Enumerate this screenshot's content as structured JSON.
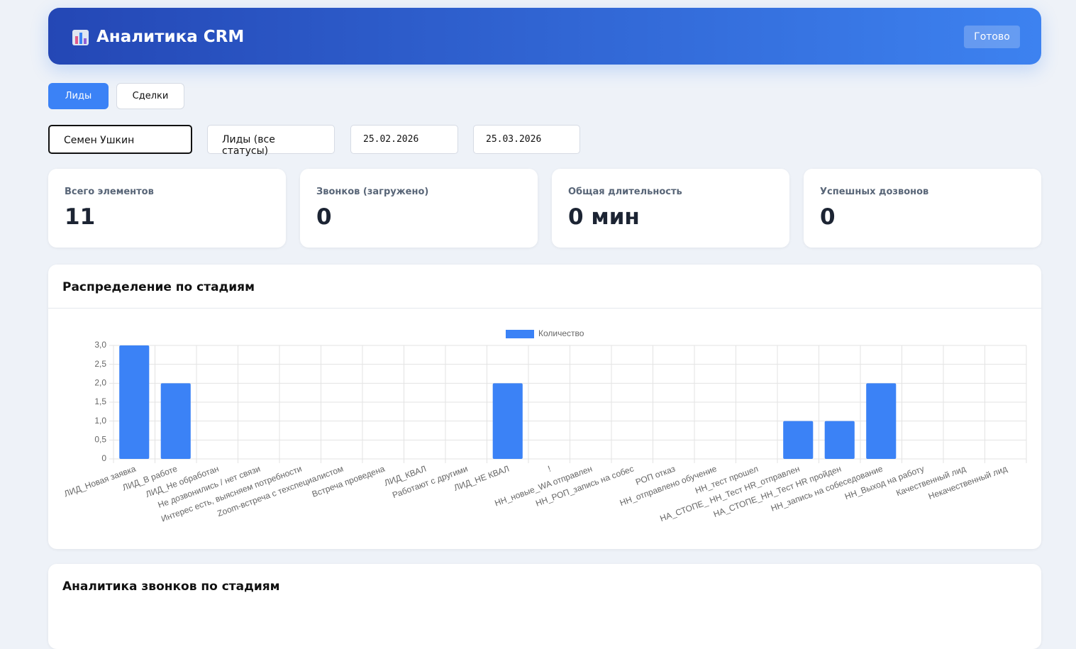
{
  "header": {
    "title": "Аналитика CRM",
    "button": "Готово"
  },
  "tabs": [
    "Лиды",
    "Сделки"
  ],
  "filters": [
    "Семен Ушкин",
    "Лиды (все статусы)",
    "25.02.2026",
    "25.03.2026"
  ],
  "stats": [
    {
      "label": "Всего элементов",
      "value": 11
    },
    {
      "label": "Звонков (загружено)",
      "value": 0
    },
    {
      "label": "Общая длительность",
      "value": "0 мин"
    },
    {
      "label": "Успешных дозвонов",
      "value": 0
    }
  ],
  "sections": [
    "Распределение по стадиям",
    "Аналитика звонков по стадиям"
  ],
  "chart_data": {
    "type": "bar",
    "categories": [
      "ЛИД_Новая заявка",
      "ЛИД_В работе",
      "ЛИД_Не обработан",
      "Не дозвонились / нет связи",
      "Интерес есть, выясняем потребности",
      "Zoom-встреча с техспециалистом",
      "Встреча проведена",
      "ЛИД_КВАЛ",
      "Работают с другими",
      "ЛИД_НЕ КВАЛ",
      "!",
      "НН_новые_WA отправлен",
      "НН_РОП_запись на собес",
      "РОП отказ",
      "НН_отправлено обучение",
      "НН_тест прошел",
      "НА_СТОПЕ_ НН_Тест HR_отправлен",
      "НА_СТОПЕ_НН_Тест HR пройден",
      "НН_запись на собеседование",
      "НН_Выход на работу",
      "Качественный лид",
      "Некачественный лид"
    ],
    "series": [
      {
        "name": "Количество",
        "color": "#3b82f6",
        "values": [
          3,
          2,
          0,
          0,
          0,
          0,
          0,
          0,
          0,
          2,
          0,
          0,
          0,
          0,
          0,
          0,
          1,
          1,
          2,
          0,
          0,
          0
        ]
      }
    ],
    "ylim": [
      0,
      3
    ],
    "yticks": [
      0,
      {
        "value": 0.5,
        "label": "0,5"
      },
      {
        "value": 1,
        "label": "1,0"
      },
      {
        "value": 1.5,
        "label": "1,5"
      },
      {
        "value": 2,
        "label": "2,0"
      },
      {
        "value": 2.5,
        "label": "2,5"
      },
      {
        "value": 3,
        "label": "3,0"
      }
    ],
    "grid": true,
    "legend": "top"
  }
}
